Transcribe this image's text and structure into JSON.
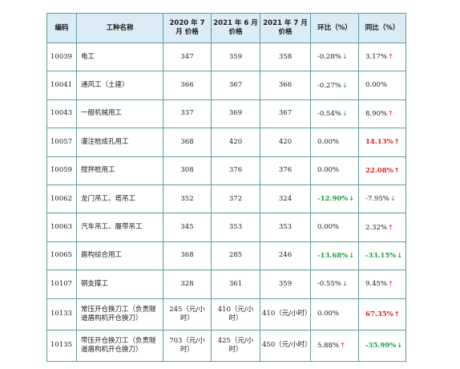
{
  "table": {
    "headers": {
      "code": "编码",
      "name": "工种名称",
      "col_2020_7": "2020 年 7 月 价格",
      "col_2021_6": "2021 年 6 月 价格",
      "col_2021_7": "2021 年 7 月 价格",
      "mom": "环比（%）",
      "yoy": "同比（%）"
    },
    "rows": [
      {
        "code": "10039",
        "name": "电工",
        "p2020_7": "347",
        "p2021_6": "359",
        "p2021_7": "358",
        "mom": "-0.28%",
        "mom_dir": "down",
        "mom_bold": false,
        "yoy": "3.17%",
        "yoy_dir": "up",
        "yoy_bold": false
      },
      {
        "code": "10041",
        "name": "通风工（土建）",
        "p2020_7": "366",
        "p2021_6": "367",
        "p2021_7": "366",
        "mom": "-0.27%",
        "mom_dir": "down",
        "mom_bold": false,
        "yoy": "0.00%",
        "yoy_dir": "none",
        "yoy_bold": false
      },
      {
        "code": "10043",
        "name": "一般机械用工",
        "p2020_7": "337",
        "p2021_6": "369",
        "p2021_7": "367",
        "mom": "-0.54%",
        "mom_dir": "down",
        "mom_bold": false,
        "yoy": "8.90%",
        "yoy_dir": "up",
        "yoy_bold": false
      },
      {
        "code": "10057",
        "name": "灌注桩成孔用工",
        "p2020_7": "368",
        "p2021_6": "420",
        "p2021_7": "420",
        "mom": "0.00%",
        "mom_dir": "none",
        "mom_bold": false,
        "yoy": "14.13%",
        "yoy_dir": "up",
        "yoy_bold": true
      },
      {
        "code": "10059",
        "name": "搅拌桩用工",
        "p2020_7": "308",
        "p2021_6": "376",
        "p2021_7": "376",
        "mom": "0.00%",
        "mom_dir": "none",
        "mom_bold": false,
        "yoy": "22.08%",
        "yoy_dir": "up",
        "yoy_bold": true
      },
      {
        "code": "10062",
        "name": "龙门吊工、塔吊工",
        "p2020_7": "352",
        "p2021_6": "372",
        "p2021_7": "324",
        "mom": "-12.90%",
        "mom_dir": "down",
        "mom_bold": true,
        "yoy": "-7.95%",
        "yoy_dir": "down",
        "yoy_bold": false
      },
      {
        "code": "10063",
        "name": "汽车吊工、履带吊工",
        "p2020_7": "345",
        "p2021_6": "353",
        "p2021_7": "353",
        "mom": "0.00%",
        "mom_dir": "none",
        "mom_bold": false,
        "yoy": "2.32%",
        "yoy_dir": "up",
        "yoy_bold": false
      },
      {
        "code": "10065",
        "name": "盾构综合用工",
        "p2020_7": "368",
        "p2021_6": "285",
        "p2021_7": "246",
        "mom": "-13.68%",
        "mom_dir": "down",
        "mom_bold": true,
        "yoy": "-33.15%",
        "yoy_dir": "down",
        "yoy_bold": true
      },
      {
        "code": "10107",
        "name": "钢支撑工",
        "p2020_7": "328",
        "p2021_6": "361",
        "p2021_7": "359",
        "mom": "-0.55%",
        "mom_dir": "down",
        "mom_bold": false,
        "yoy": "9.45%",
        "yoy_dir": "up",
        "yoy_bold": false
      },
      {
        "code": "10133",
        "name": "常压开仓换刀工（负责隧道盾构机开仓换刀）",
        "p2020_7": "245（元/小时）",
        "p2021_6": "410（元/小时）",
        "p2021_7": "410（元/小时）",
        "mom": "0.00%",
        "mom_dir": "none",
        "mom_bold": false,
        "yoy": "67.35%",
        "yoy_dir": "up",
        "yoy_bold": true
      },
      {
        "code": "10135",
        "name": "带压开仓换刀工（负责隧道盾构机开仓换刀）",
        "p2020_7": "703（元/小时）",
        "p2021_6": "425（元/小时）",
        "p2021_7": "450（元/小时）",
        "mom": "5.88%",
        "mom_dir": "up",
        "mom_bold": false,
        "yoy": "-35.99%",
        "yoy_dir": "down",
        "yoy_bold": true
      }
    ]
  },
  "icons": {
    "up": "↑",
    "down": "↓"
  },
  "colors": {
    "header_bg": "#dcecf6",
    "border": "#5f9b9b",
    "up": "#e0211c",
    "down": "#1aa13a"
  }
}
